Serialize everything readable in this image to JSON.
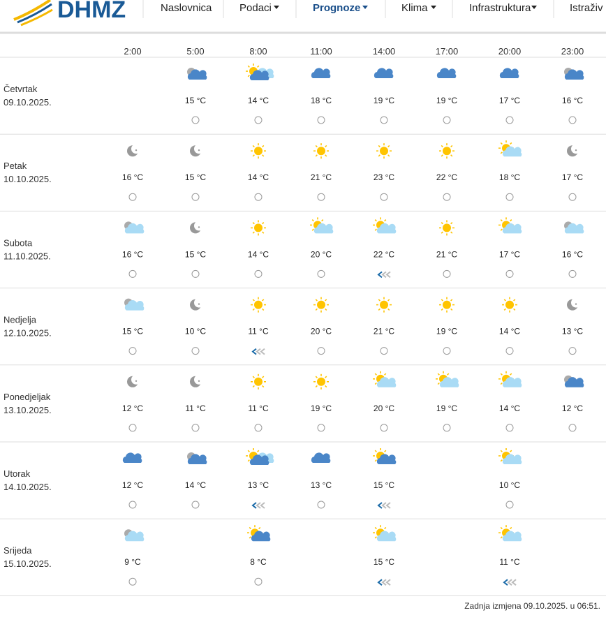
{
  "header": {
    "logo": "DHMZ",
    "nav": [
      "Naslovnica",
      "Podaci",
      "Prognoze",
      "Klima",
      "Infrastruktura",
      "Istraživ"
    ]
  },
  "table": {
    "times": [
      "2:00",
      "5:00",
      "8:00",
      "11:00",
      "14:00",
      "17:00",
      "20:00",
      "23:00"
    ],
    "days": [
      {
        "name": "Četvrtak",
        "date": "09.10.2025.",
        "temps": [
          null,
          "15 °C",
          "14 °C",
          "18 °C",
          "19 °C",
          "19 °C",
          "17 °C",
          "16 °C"
        ]
      },
      {
        "name": "Petak",
        "date": "10.10.2025.",
        "temps": [
          "16 °C",
          "15 °C",
          "14 °C",
          "21 °C",
          "23 °C",
          "22 °C",
          "18 °C",
          "17 °C"
        ]
      },
      {
        "name": "Subota",
        "date": "11.10.2025.",
        "temps": [
          "16 °C",
          "15 °C",
          "14 °C",
          "20 °C",
          "22 °C",
          "21 °C",
          "17 °C",
          "16 °C"
        ]
      },
      {
        "name": "Nedjelja",
        "date": "12.10.2025.",
        "temps": [
          "15 °C",
          "10 °C",
          "11 °C",
          "20 °C",
          "21 °C",
          "19 °C",
          "14 °C",
          "13 °C"
        ]
      },
      {
        "name": "Ponedjeljak",
        "date": "13.10.2025.",
        "temps": [
          "12 °C",
          "11 °C",
          "11 °C",
          "19 °C",
          "20 °C",
          "19 °C",
          "14 °C",
          "12 °C"
        ]
      },
      {
        "name": "Utorak",
        "date": "14.10.2025.",
        "temps": [
          "12 °C",
          "14 °C",
          "13 °C",
          "13 °C",
          "15 °C",
          null,
          "10 °C",
          null
        ]
      },
      {
        "name": "Srijeda",
        "date": "15.10.2025.",
        "temps": [
          "9 °C",
          null,
          "8 °C",
          null,
          "15 °C",
          null,
          "11 °C",
          null
        ]
      }
    ]
  },
  "footer": "Zadnja izmjena 09.10.2025. u 06:51."
}
